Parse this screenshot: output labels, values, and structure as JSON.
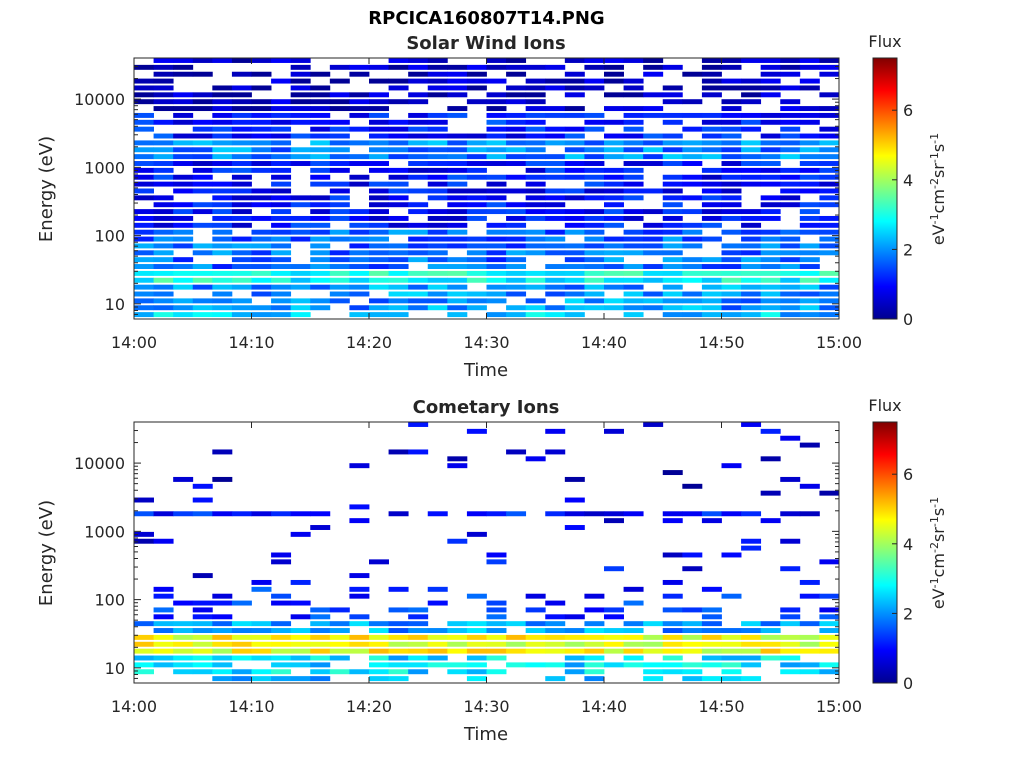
{
  "figure_title": "RPCICA160807T14.PNG",
  "colormap": [
    "#00008f",
    "#0000ff",
    "#0080ff",
    "#00ffff",
    "#80ff80",
    "#ffff00",
    "#ff8000",
    "#ff0000",
    "#800000"
  ],
  "chart_data": [
    {
      "type": "heatmap",
      "title": "Solar Wind Ions",
      "xlabel": "Time",
      "ylabel": "Energy (eV)",
      "x_ticks": [
        "14:00",
        "14:10",
        "14:20",
        "14:30",
        "14:40",
        "14:50",
        "15:00"
      ],
      "y_scale": "log",
      "y_ticks": [
        10,
        100,
        1000,
        10000
      ],
      "y_tick_labels": [
        "10",
        "100",
        "1000",
        "10000"
      ],
      "ylim": [
        6,
        40000
      ],
      "colorbar": {
        "title": "Flux",
        "label": "eV-1cm-2sr-1s-1",
        "range": [
          0,
          7.5
        ],
        "ticks": [
          "0",
          "2",
          "4",
          "6"
        ]
      },
      "time_bins": 36,
      "energy_bins": 38,
      "bands": [
        {
          "energy_range_eV": [
            6,
            8
          ],
          "flux": 2.4,
          "coverage": 0.8
        },
        {
          "energy_range_eV": [
            8,
            18
          ],
          "flux": 2.0,
          "coverage": 0.85
        },
        {
          "energy_range_eV": [
            18,
            33
          ],
          "flux": 2.9,
          "coverage": 1.0
        },
        {
          "energy_range_eV": [
            33,
            130
          ],
          "flux": 1.7,
          "coverage": 0.85
        },
        {
          "energy_range_eV": [
            130,
            1300
          ],
          "flux": 1.0,
          "coverage": 0.8
        },
        {
          "energy_range_eV": [
            1300,
            2400
          ],
          "flux": 1.9,
          "coverage": 0.95
        },
        {
          "energy_range_eV": [
            2400,
            6000
          ],
          "flux": 1.1,
          "coverage": 0.8
        },
        {
          "energy_range_eV": [
            6000,
            40000
          ],
          "flux": 0.3,
          "coverage": 0.7
        }
      ]
    },
    {
      "type": "heatmap",
      "title": "Cometary Ions",
      "xlabel": "Time",
      "ylabel": "Energy (eV)",
      "x_ticks": [
        "14:00",
        "14:10",
        "14:20",
        "14:30",
        "14:40",
        "14:50",
        "15:00"
      ],
      "y_scale": "log",
      "y_ticks": [
        10,
        100,
        1000,
        10000
      ],
      "y_tick_labels": [
        "10",
        "100",
        "1000",
        "10000"
      ],
      "ylim": [
        6,
        40000
      ],
      "colorbar": {
        "title": "Flux",
        "label": "eV-1cm-2sr-1s-1",
        "range": [
          0,
          7.5
        ],
        "ticks": [
          "0",
          "2",
          "4",
          "6"
        ]
      },
      "time_bins": 36,
      "energy_bins": 38,
      "bands": [
        {
          "energy_range_eV": [
            6,
            8
          ],
          "flux": 2.3,
          "coverage": 0.45
        },
        {
          "energy_range_eV": [
            8,
            16
          ],
          "flux": 2.6,
          "coverage": 0.85
        },
        {
          "energy_range_eV": [
            16,
            33
          ],
          "flux": 4.6,
          "coverage": 1.0
        },
        {
          "energy_range_eV": [
            33,
            45
          ],
          "flux": 2.1,
          "coverage": 0.9
        },
        {
          "energy_range_eV": [
            45,
            160
          ],
          "flux": 1.2,
          "coverage": 0.3
        },
        {
          "energy_range_eV": [
            160,
            1500
          ],
          "flux": 0.8,
          "coverage": 0.1
        },
        {
          "energy_range_eV": [
            1500,
            2000
          ],
          "flux": 1.0,
          "coverage": 0.8
        },
        {
          "energy_range_eV": [
            2000,
            40000
          ],
          "flux": 0.6,
          "coverage": 0.06
        }
      ]
    }
  ]
}
